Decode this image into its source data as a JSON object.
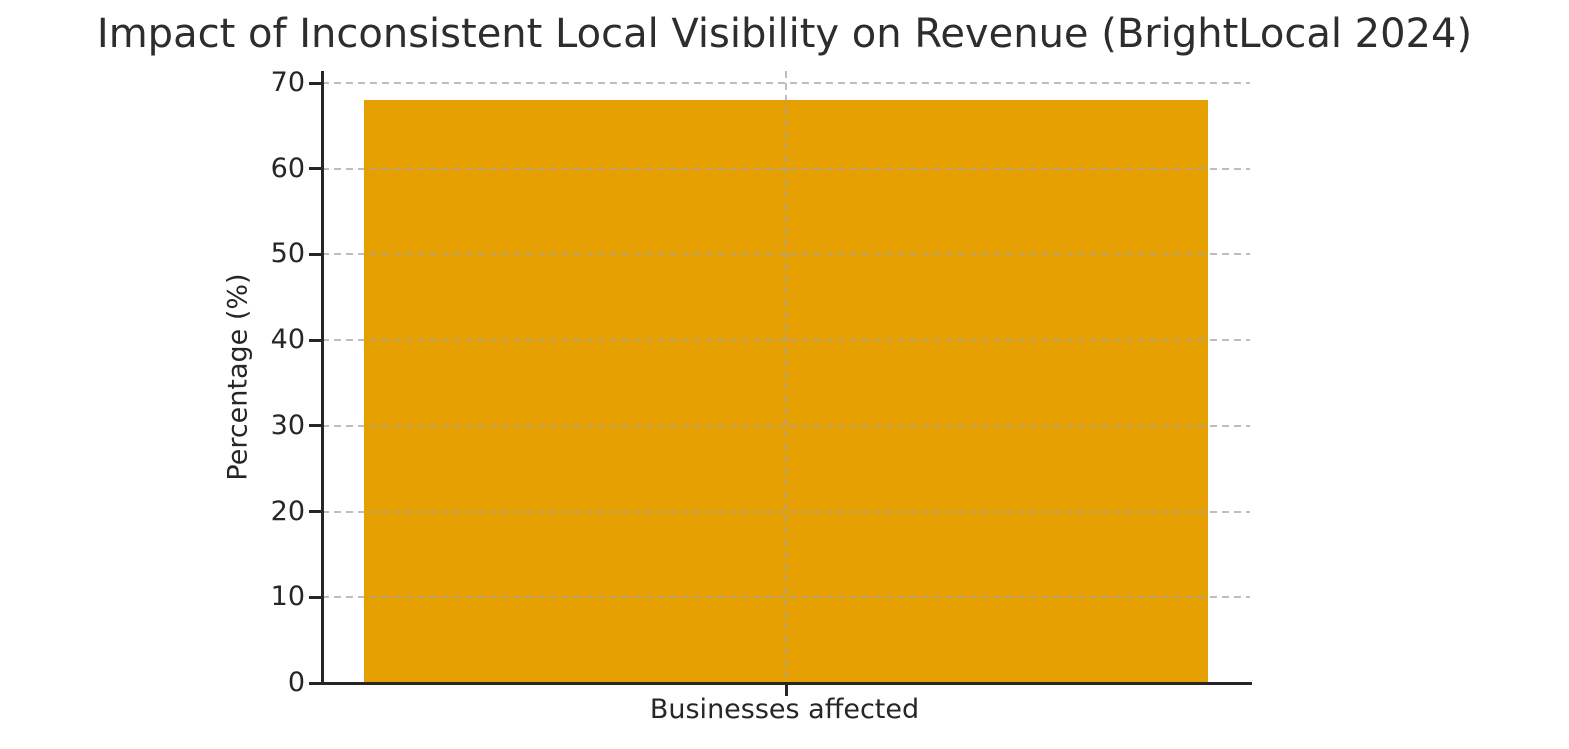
{
  "page": {
    "background": "#ffffff"
  },
  "chart_data": {
    "type": "bar",
    "title": "Impact of Inconsistent Local Visibility on Revenue (BrightLocal 2024)",
    "categories": [
      "Businesses affected"
    ],
    "values": [
      68
    ],
    "xlabel": "",
    "ylabel": "Percentage (%)",
    "ylim": [
      0,
      71.4
    ],
    "xlim": [
      -0.44,
      0.44
    ],
    "yticks": [
      0,
      10,
      20,
      30,
      40,
      50,
      60,
      70
    ],
    "bar_width": 0.8,
    "bar_color": "#E69F00",
    "grid": {
      "visible": true,
      "style": "dashed",
      "color": "#c9c9c9",
      "horizontal_at": [
        10,
        20,
        30,
        40,
        50,
        60,
        70
      ],
      "vertical_at_category": true,
      "drawn_over_bars": true
    },
    "legend": {
      "visible": false
    },
    "axis_color": "#262626",
    "text_color": "#262626",
    "title_color": "#2d2d2d",
    "spines": [
      "left",
      "bottom"
    ]
  }
}
